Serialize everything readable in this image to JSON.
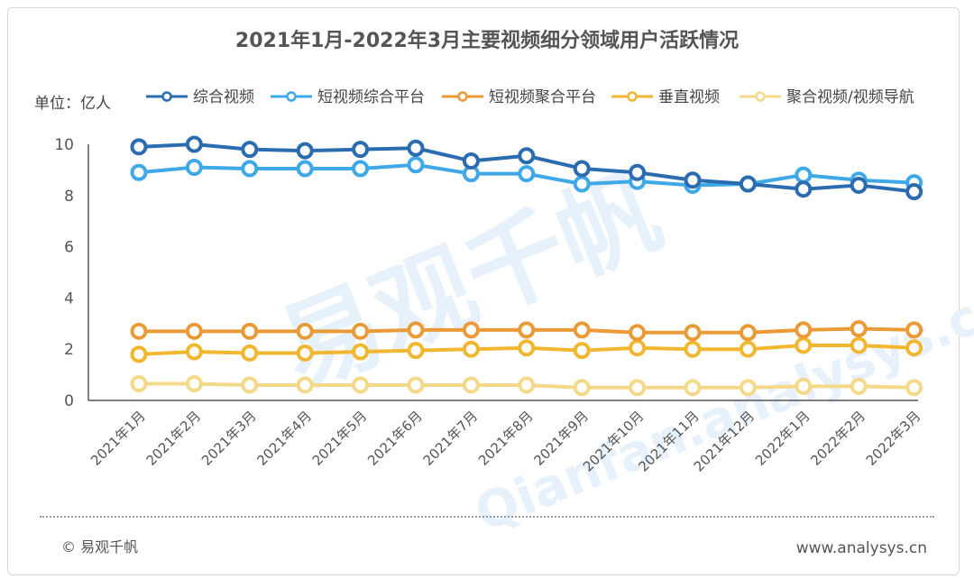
{
  "chart_data": {
    "type": "line",
    "title": "2021年1月-2022年3月主要视频细分领域用户活跃情况",
    "unit_label": "单位：亿人",
    "categories": [
      "2021年1月",
      "2021年2月",
      "2021年3月",
      "2021年4月",
      "2021年5月",
      "2021年6月",
      "2021年7月",
      "2021年8月",
      "2021年9月",
      "2021年10月",
      "2021年11月",
      "2021年12月",
      "2022年1月",
      "2022年2月",
      "2022年3月"
    ],
    "yticks": [
      "0",
      "2",
      "4",
      "6",
      "8",
      "10"
    ],
    "ylim": [
      0,
      10
    ],
    "grid": false,
    "legend_position": "top",
    "series": [
      {
        "name": "综合视频",
        "color": "#2b6cb0",
        "values": [
          9.9,
          10.0,
          9.8,
          9.75,
          9.8,
          9.85,
          9.35,
          9.55,
          9.05,
          8.9,
          8.6,
          8.45,
          8.25,
          8.4,
          8.15
        ]
      },
      {
        "name": "短视频综合平台",
        "color": "#3fa9e8",
        "values": [
          8.9,
          9.1,
          9.05,
          9.05,
          9.05,
          9.2,
          8.85,
          8.85,
          8.45,
          8.55,
          8.4,
          8.45,
          8.8,
          8.6,
          8.5
        ]
      },
      {
        "name": "短视频聚合平台",
        "color": "#ea9b38",
        "values": [
          2.7,
          2.7,
          2.7,
          2.7,
          2.7,
          2.75,
          2.75,
          2.75,
          2.75,
          2.65,
          2.65,
          2.65,
          2.75,
          2.8,
          2.75
        ]
      },
      {
        "name": "垂直视频",
        "color": "#f2b731",
        "values": [
          1.8,
          1.9,
          1.85,
          1.85,
          1.9,
          1.95,
          2.0,
          2.05,
          1.95,
          2.05,
          2.0,
          2.0,
          2.15,
          2.15,
          2.05
        ]
      },
      {
        "name": "聚合视频/视频导航",
        "color": "#f5d98a",
        "values": [
          0.65,
          0.65,
          0.6,
          0.6,
          0.6,
          0.6,
          0.6,
          0.6,
          0.5,
          0.5,
          0.5,
          0.5,
          0.55,
          0.55,
          0.5
        ]
      }
    ]
  },
  "watermark": {
    "text": "易观千帆",
    "url": "Qianfan.analysys.cn"
  },
  "footer": {
    "copyright": "© 易观千帆",
    "site": "www.analysys.cn"
  }
}
